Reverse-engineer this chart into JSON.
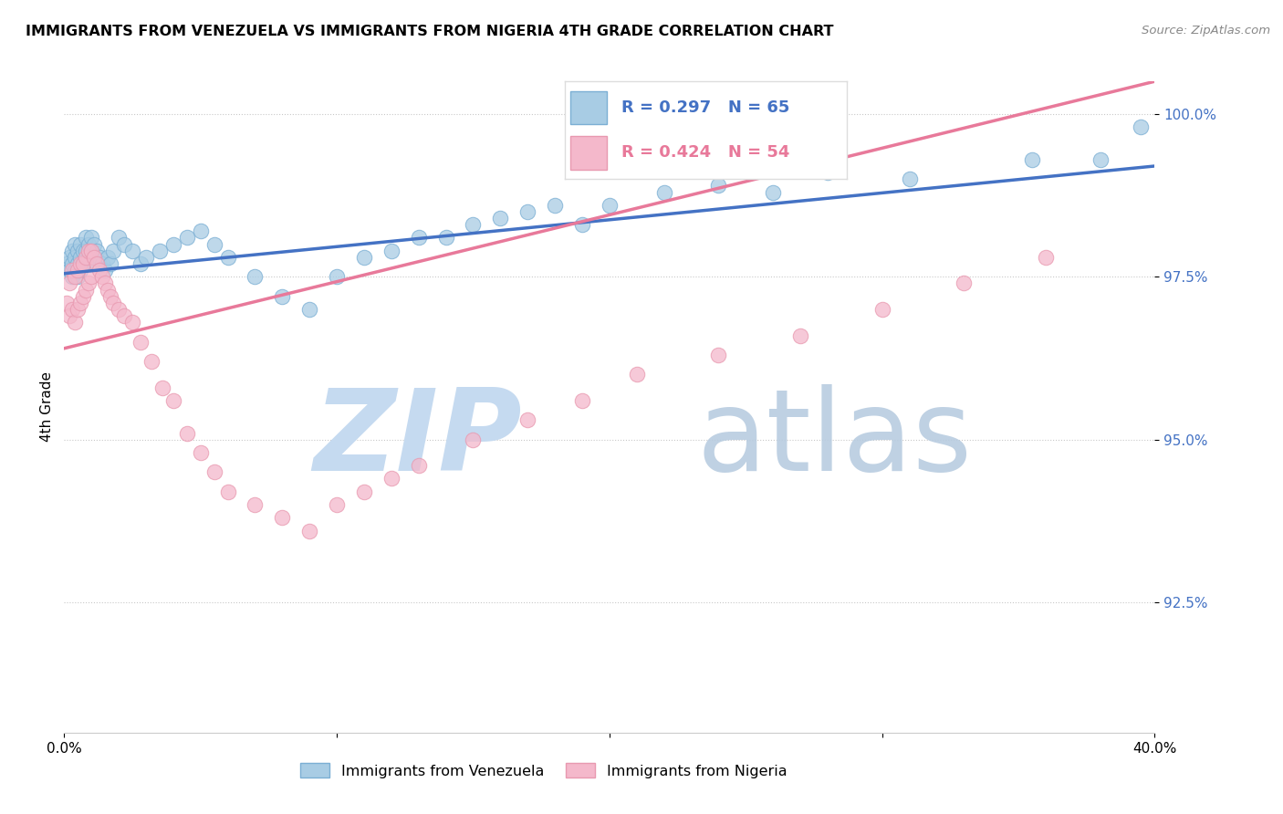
{
  "title": "IMMIGRANTS FROM VENEZUELA VS IMMIGRANTS FROM NIGERIA 4TH GRADE CORRELATION CHART",
  "source": "Source: ZipAtlas.com",
  "ylabel": "4th Grade",
  "xlim": [
    0.0,
    0.4
  ],
  "ylim": [
    0.905,
    1.005
  ],
  "yticks": [
    0.925,
    0.95,
    0.975,
    1.0
  ],
  "ytick_labels": [
    "92.5%",
    "95.0%",
    "97.5%",
    "100.0%"
  ],
  "xticks": [
    0.0,
    0.1,
    0.2,
    0.3,
    0.4
  ],
  "xtick_labels": [
    "0.0%",
    "",
    "",
    "",
    "40.0%"
  ],
  "blue_color": "#a8cce4",
  "blue_edge": "#7bafd4",
  "blue_line": "#4472c4",
  "pink_color": "#f4b8cb",
  "pink_edge": "#e899b0",
  "pink_line": "#e8799a",
  "R_ven": 0.297,
  "N_ven": 65,
  "R_nig": 0.424,
  "N_nig": 54,
  "ven_line_x": [
    0.0,
    0.4
  ],
  "ven_line_y": [
    0.9755,
    0.992
  ],
  "nig_line_x": [
    0.0,
    0.4
  ],
  "nig_line_y": [
    0.964,
    1.005
  ],
  "ven_x": [
    0.001,
    0.002,
    0.002,
    0.003,
    0.003,
    0.003,
    0.004,
    0.004,
    0.004,
    0.005,
    0.005,
    0.005,
    0.006,
    0.006,
    0.006,
    0.007,
    0.007,
    0.008,
    0.008,
    0.008,
    0.009,
    0.009,
    0.01,
    0.01,
    0.011,
    0.012,
    0.013,
    0.014,
    0.015,
    0.016,
    0.017,
    0.018,
    0.02,
    0.022,
    0.025,
    0.028,
    0.03,
    0.035,
    0.04,
    0.045,
    0.05,
    0.055,
    0.06,
    0.07,
    0.08,
    0.09,
    0.1,
    0.11,
    0.13,
    0.15,
    0.17,
    0.19,
    0.22,
    0.26,
    0.31,
    0.355,
    0.38,
    0.395,
    0.2,
    0.24,
    0.12,
    0.14,
    0.16,
    0.18,
    0.28
  ],
  "ven_y": [
    0.977,
    0.978,
    0.976,
    0.979,
    0.975,
    0.977,
    0.98,
    0.978,
    0.976,
    0.979,
    0.977,
    0.975,
    0.98,
    0.978,
    0.976,
    0.979,
    0.977,
    0.981,
    0.979,
    0.977,
    0.98,
    0.978,
    0.981,
    0.979,
    0.98,
    0.979,
    0.978,
    0.977,
    0.976,
    0.978,
    0.977,
    0.979,
    0.981,
    0.98,
    0.979,
    0.977,
    0.978,
    0.979,
    0.98,
    0.981,
    0.982,
    0.98,
    0.978,
    0.975,
    0.972,
    0.97,
    0.975,
    0.978,
    0.981,
    0.983,
    0.985,
    0.983,
    0.988,
    0.988,
    0.99,
    0.993,
    0.993,
    0.998,
    0.986,
    0.989,
    0.979,
    0.981,
    0.984,
    0.986,
    0.991
  ],
  "nig_x": [
    0.001,
    0.002,
    0.002,
    0.003,
    0.003,
    0.004,
    0.004,
    0.005,
    0.005,
    0.006,
    0.006,
    0.007,
    0.007,
    0.008,
    0.008,
    0.009,
    0.009,
    0.01,
    0.01,
    0.011,
    0.012,
    0.013,
    0.014,
    0.015,
    0.016,
    0.017,
    0.018,
    0.02,
    0.022,
    0.025,
    0.028,
    0.032,
    0.036,
    0.04,
    0.045,
    0.05,
    0.055,
    0.06,
    0.07,
    0.08,
    0.09,
    0.1,
    0.11,
    0.12,
    0.13,
    0.15,
    0.17,
    0.19,
    0.21,
    0.24,
    0.27,
    0.3,
    0.33,
    0.36
  ],
  "nig_y": [
    0.971,
    0.974,
    0.969,
    0.976,
    0.97,
    0.975,
    0.968,
    0.976,
    0.97,
    0.977,
    0.971,
    0.977,
    0.972,
    0.978,
    0.973,
    0.979,
    0.974,
    0.979,
    0.975,
    0.978,
    0.977,
    0.976,
    0.975,
    0.974,
    0.973,
    0.972,
    0.971,
    0.97,
    0.969,
    0.968,
    0.965,
    0.962,
    0.958,
    0.956,
    0.951,
    0.948,
    0.945,
    0.942,
    0.94,
    0.938,
    0.936,
    0.94,
    0.942,
    0.944,
    0.946,
    0.95,
    0.953,
    0.956,
    0.96,
    0.963,
    0.966,
    0.97,
    0.974,
    0.978
  ]
}
